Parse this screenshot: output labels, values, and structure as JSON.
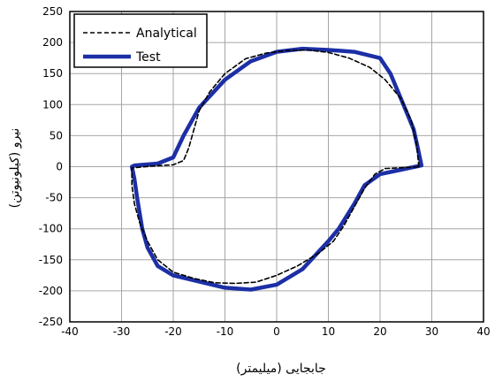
{
  "chart_data": {
    "type": "line",
    "xlabel": "جابجایی (میلیمتر)",
    "ylabel": "نیرو (کیلونیوتن)",
    "xlim": [
      -40,
      40
    ],
    "ylim": [
      -250,
      250
    ],
    "x_ticks": [
      -40,
      -30,
      -20,
      -10,
      0,
      10,
      20,
      30,
      40
    ],
    "y_ticks": [
      -250,
      -200,
      -150,
      -100,
      -50,
      0,
      50,
      100,
      150,
      200,
      250
    ],
    "grid": true,
    "legend_position": "top-left",
    "series": [
      {
        "name": "Analytical",
        "style": "dashed",
        "color": "#000000",
        "points": [
          [
            27.5,
            0
          ],
          [
            27,
            40
          ],
          [
            26,
            75
          ],
          [
            24,
            110
          ],
          [
            21,
            140
          ],
          [
            18,
            160
          ],
          [
            14,
            175
          ],
          [
            10,
            184
          ],
          [
            6,
            188
          ],
          [
            2,
            187
          ],
          [
            -2,
            183
          ],
          [
            -6,
            174
          ],
          [
            -10,
            150
          ],
          [
            -13,
            120
          ],
          [
            -15,
            90
          ],
          [
            -16,
            60
          ],
          [
            -17,
            30
          ],
          [
            -18,
            10
          ],
          [
            -20,
            3
          ],
          [
            -24,
            1
          ],
          [
            -28,
            -2
          ],
          [
            -28,
            -30
          ],
          [
            -27.5,
            -60
          ],
          [
            -26.5,
            -90
          ],
          [
            -25,
            -120
          ],
          [
            -23,
            -150
          ],
          [
            -20,
            -170
          ],
          [
            -16,
            -180
          ],
          [
            -12,
            -187
          ],
          [
            -8,
            -188
          ],
          [
            -4,
            -186
          ],
          [
            0,
            -175
          ],
          [
            4,
            -160
          ],
          [
            8,
            -140
          ],
          [
            11,
            -120
          ],
          [
            13,
            -95
          ],
          [
            15,
            -65
          ],
          [
            17,
            -35
          ],
          [
            19,
            -12
          ],
          [
            21,
            -3
          ],
          [
            26,
            -1
          ],
          [
            27.5,
            0
          ]
        ]
      },
      {
        "name": "Test",
        "style": "solid",
        "color": "#1c2fa6",
        "points": [
          [
            28,
            2
          ],
          [
            27.3,
            30
          ],
          [
            26.5,
            60
          ],
          [
            25,
            90
          ],
          [
            23.5,
            120
          ],
          [
            22,
            150
          ],
          [
            20,
            175
          ],
          [
            15,
            185
          ],
          [
            10,
            188
          ],
          [
            5,
            190
          ],
          [
            0,
            185
          ],
          [
            -5,
            170
          ],
          [
            -10,
            140
          ],
          [
            -15,
            95
          ],
          [
            -18,
            50
          ],
          [
            -20,
            15
          ],
          [
            -23,
            5
          ],
          [
            -27.5,
            2
          ],
          [
            -28,
            0
          ],
          [
            -27.5,
            -20
          ],
          [
            -27,
            -50
          ],
          [
            -26,
            -100
          ],
          [
            -25,
            -130
          ],
          [
            -23,
            -160
          ],
          [
            -20,
            -175
          ],
          [
            -15,
            -185
          ],
          [
            -10,
            -195
          ],
          [
            -5,
            -198
          ],
          [
            0,
            -190
          ],
          [
            5,
            -165
          ],
          [
            10,
            -120
          ],
          [
            12,
            -100
          ],
          [
            15,
            -60
          ],
          [
            17,
            -30
          ],
          [
            20,
            -12
          ],
          [
            24,
            -5
          ],
          [
            28,
            2
          ]
        ]
      }
    ]
  }
}
